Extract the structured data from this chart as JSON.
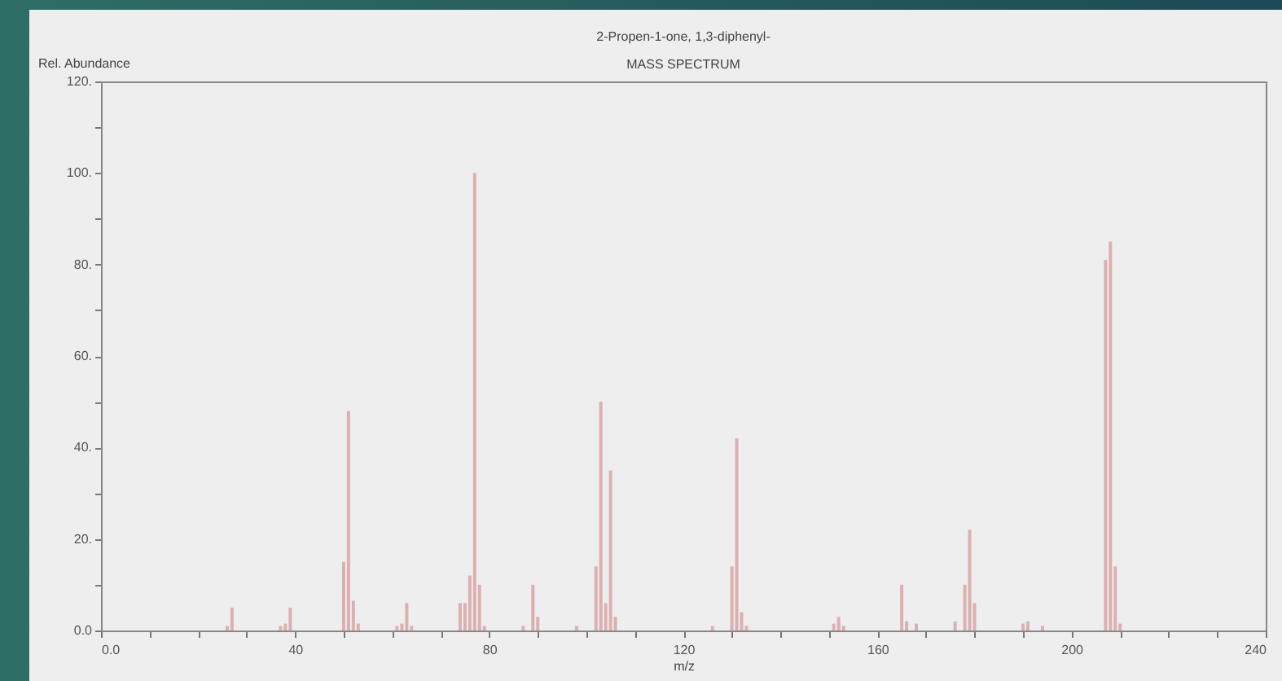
{
  "chart_data": {
    "type": "bar",
    "title": "2-Propen-1-one, 1,3-diphenyl-",
    "subtitle": "MASS SPECTRUM",
    "xlabel": "m/z",
    "ylabel": "Rel. Abundance",
    "x": [
      26,
      27,
      37,
      38,
      39,
      50,
      51,
      52,
      53,
      61,
      62,
      63,
      64,
      74,
      75,
      76,
      77,
      78,
      79,
      87,
      89,
      90,
      98,
      102,
      103,
      104,
      105,
      106,
      126,
      130,
      131,
      132,
      133,
      151,
      152,
      153,
      165,
      166,
      168,
      176,
      178,
      179,
      180,
      190,
      191,
      194,
      207,
      208,
      209,
      210
    ],
    "values": [
      1,
      5,
      1,
      1.5,
      5,
      15,
      48,
      6.5,
      1.5,
      1,
      1.5,
      6,
      1,
      6,
      6,
      12,
      100,
      10,
      1,
      1,
      10,
      3,
      1,
      14,
      50,
      6,
      35,
      3,
      1,
      14,
      42,
      4,
      1,
      1.5,
      3,
      1,
      10,
      2,
      1.5,
      2,
      10,
      22,
      6,
      1.5,
      2,
      1,
      81,
      85,
      14,
      1.5
    ],
    "color": "#ddb0b0",
    "xlim": [
      0,
      240
    ],
    "xticks": [
      {
        "value": 0,
        "label": "0.0"
      },
      {
        "value": 10,
        "label": null
      },
      {
        "value": 20,
        "label": null
      },
      {
        "value": 30,
        "label": null
      },
      40,
      {
        "value": 50,
        "label": null
      },
      {
        "value": 60,
        "label": null
      },
      {
        "value": 70,
        "label": null
      },
      80,
      {
        "value": 90,
        "label": null
      },
      {
        "value": 100,
        "label": null
      },
      {
        "value": 110,
        "label": null
      },
      120,
      {
        "value": 130,
        "label": null
      },
      {
        "value": 140,
        "label": null
      },
      {
        "value": 150,
        "label": null
      },
      160,
      {
        "value": 170,
        "label": null
      },
      {
        "value": 180,
        "label": null
      },
      {
        "value": 190,
        "label": null
      },
      200,
      {
        "value": 210,
        "label": null
      },
      {
        "value": 220,
        "label": null
      },
      {
        "value": 230,
        "label": null
      },
      240
    ],
    "ylim": [
      0,
      120
    ],
    "yticks": [
      {
        "value": 0,
        "label": "0.0"
      },
      {
        "value": 10,
        "label": null
      },
      {
        "value": 20,
        "label": "20."
      },
      {
        "value": 30,
        "label": null
      },
      {
        "value": 40,
        "label": "40."
      },
      {
        "value": 50,
        "label": null
      },
      {
        "value": 60,
        "label": "60."
      },
      {
        "value": 70,
        "label": null
      },
      {
        "value": 80,
        "label": "80."
      },
      {
        "value": 90,
        "label": null
      },
      {
        "value": 100,
        "label": "100."
      },
      {
        "value": 110,
        "label": null
      },
      {
        "value": 120,
        "label": "120."
      }
    ]
  }
}
